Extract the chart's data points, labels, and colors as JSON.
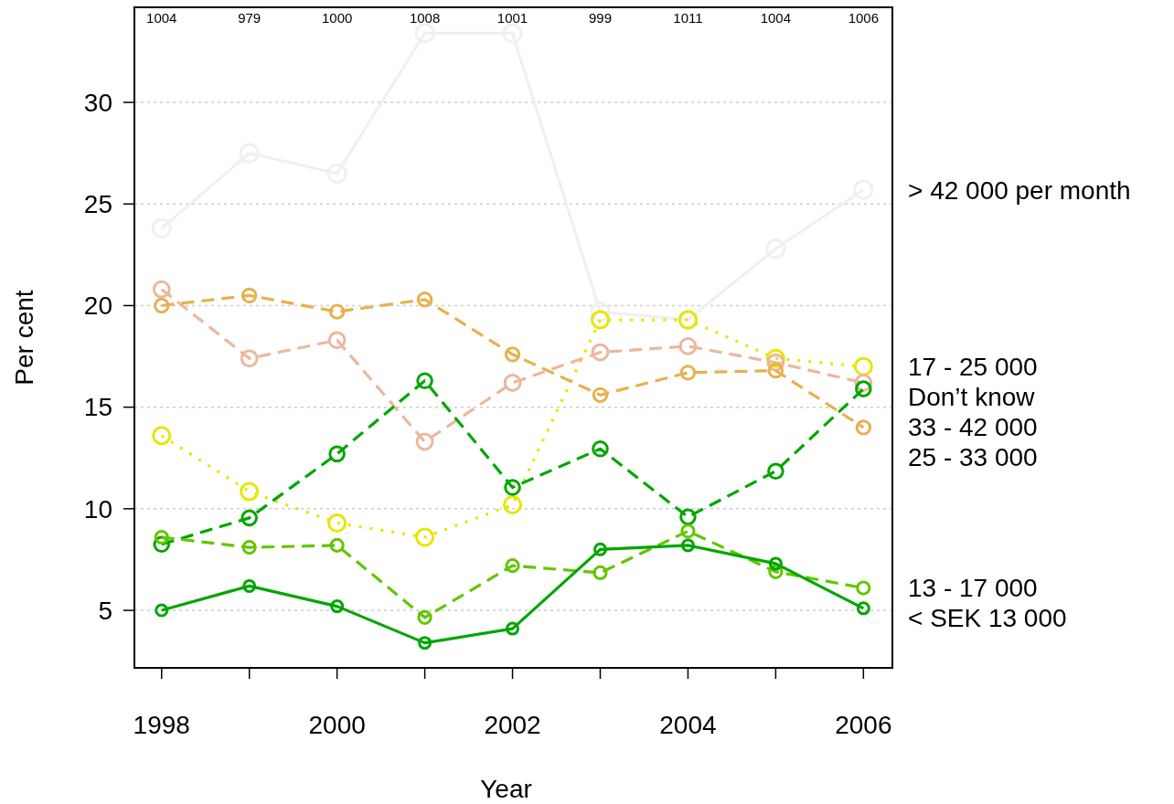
{
  "chart_data": {
    "type": "line",
    "xlabel": "Year",
    "ylabel": "Per cent",
    "x": [
      1998,
      1999,
      2000,
      2001,
      2002,
      2003,
      2004,
      2005,
      2006
    ],
    "xlim": [
      1997.69,
      2006.33
    ],
    "ylim": [
      2.17,
      34.68
    ],
    "xticks": [
      1998,
      {
        "value": 1999,
        "label": null
      },
      2000,
      {
        "value": 2001,
        "label": null
      },
      2002,
      {
        "value": 2003,
        "label": null
      },
      2004,
      {
        "value": 2005,
        "label": null
      },
      2006
    ],
    "yticks": [
      5,
      10,
      15,
      20,
      25,
      30
    ],
    "grid": "y",
    "legend": false,
    "marker": "circle",
    "series": [
      {
        "name": "> 42 000 per month",
        "color": "#f0f0f0",
        "line_style": "solid",
        "values": [
          23.8,
          27.5,
          26.5,
          33.4,
          33.4,
          19.7,
          19.3,
          22.8,
          25.7
        ]
      },
      {
        "name": "17 - 25 000",
        "color": "#e6e600",
        "line_style": "dotted",
        "values": [
          13.6,
          10.85,
          9.3,
          8.6,
          10.2,
          19.3,
          19.3,
          17.4,
          17.0
        ]
      },
      {
        "name": "Don’t know",
        "color": "#ecb79e",
        "line_style": "dashed",
        "values": [
          20.8,
          17.4,
          18.3,
          13.3,
          16.2,
          17.7,
          18.0,
          17.2,
          16.2
        ]
      },
      {
        "name": "33 - 42 000",
        "color": "#00a600",
        "line_style": "dashed",
        "values": [
          8.25,
          9.55,
          12.7,
          16.3,
          11.05,
          12.95,
          9.6,
          11.85,
          15.9
        ]
      },
      {
        "name": "25 - 33 000",
        "color": "#e8b04f",
        "line_style": "dashed",
        "values": [
          20.0,
          20.5,
          19.7,
          20.3,
          17.6,
          15.6,
          16.7,
          16.8,
          14.0
        ]
      },
      {
        "name": "13 - 17 000",
        "color": "#63c600",
        "line_style": "dashed",
        "values": [
          8.6,
          8.1,
          8.2,
          4.65,
          7.2,
          6.85,
          8.9,
          6.9,
          6.1
        ]
      },
      {
        "name": "< SEK 13 000",
        "color": "#00a600",
        "line_style": "solid",
        "values": [
          5.0,
          6.2,
          5.2,
          3.4,
          4.1,
          8.0,
          8.2,
          7.3,
          5.1
        ]
      }
    ],
    "annotations": [
      "1004",
      "979",
      "1000",
      "1008",
      "1001",
      "999",
      "1011",
      "1004",
      "1006"
    ]
  }
}
